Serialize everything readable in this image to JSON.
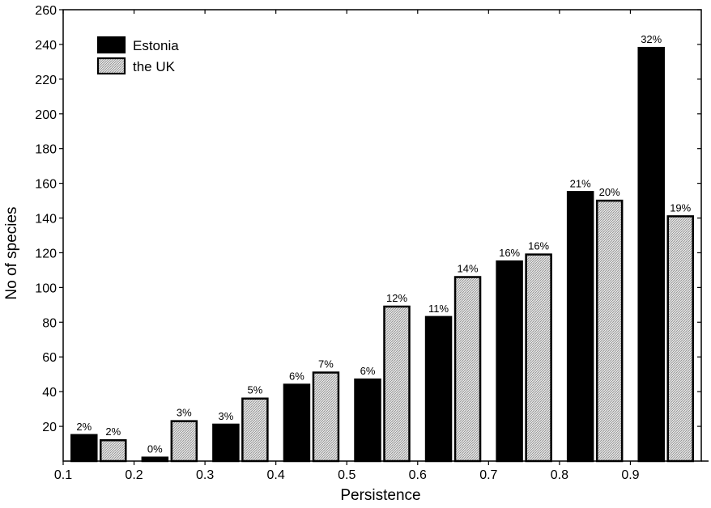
{
  "chart_data": {
    "type": "bar",
    "title": "",
    "xlabel": "Persistence",
    "ylabel": "No of species",
    "ylim": [
      0,
      260
    ],
    "y_ticks": [
      20,
      40,
      60,
      80,
      100,
      120,
      140,
      160,
      180,
      200,
      220,
      240,
      260
    ],
    "xlim": [
      0.1,
      1.0
    ],
    "x_ticks": [
      "0.1",
      "0.2",
      "0.3",
      "0.4",
      "0.5",
      "0.6",
      "0.7",
      "0.8",
      "0.9"
    ],
    "grid": false,
    "legend_position": "top-left",
    "categories": [
      "0.1-0.2",
      "0.2-0.3",
      "0.3-0.4",
      "0.4-0.5",
      "0.5-0.6",
      "0.6-0.7",
      "0.7-0.8",
      "0.8-0.9",
      "0.9-1.0"
    ],
    "series": [
      {
        "name": "Estonia",
        "color": "#000000",
        "fill": "solid",
        "values": [
          15,
          2,
          21,
          44,
          47,
          83,
          115,
          155,
          238
        ],
        "labels": [
          "2%",
          "0%",
          "3%",
          "6%",
          "6%",
          "11%",
          "16%",
          "21%",
          "32%"
        ]
      },
      {
        "name": "the UK",
        "color": "#d9d9d9",
        "fill": "hatched",
        "values": [
          12,
          23,
          36,
          51,
          89,
          106,
          119,
          150,
          141
        ],
        "labels": [
          "2%",
          "3%",
          "5%",
          "7%",
          "12%",
          "14%",
          "16%",
          "20%",
          "19%"
        ]
      }
    ]
  }
}
